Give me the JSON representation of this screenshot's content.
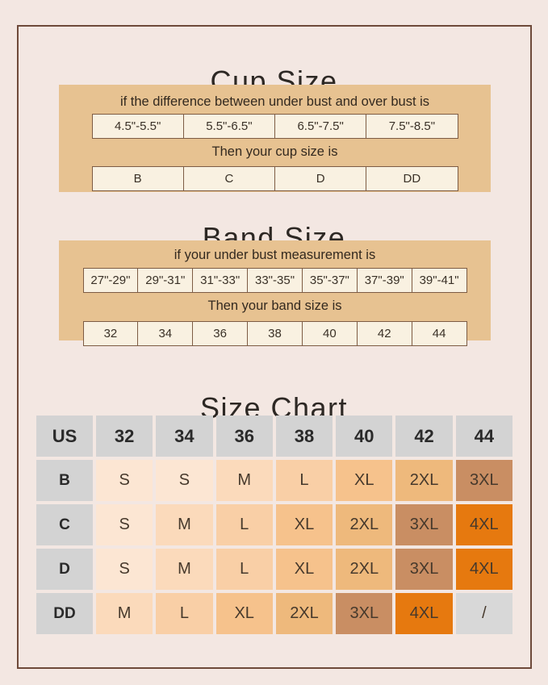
{
  "page": {
    "background": "#f3e7e2",
    "frame_color": "#6e4a3a",
    "tan_panel_color": "#e7c291",
    "cream_cell_color": "#f9f1e1"
  },
  "cup_size": {
    "title": "Cup Size",
    "instruction": "if the difference between under bust and over bust is",
    "ranges": [
      "4.5\"-5.5\"",
      "5.5\"-6.5\"",
      "6.5\"-7.5\"",
      "7.5\"-8.5\""
    ],
    "result_label": "Then your cup size is",
    "cups": [
      "B",
      "C",
      "D",
      "DD"
    ]
  },
  "band_size": {
    "title": "Band Size",
    "instruction": "if your under bust measurement is",
    "ranges": [
      "27\"-29\"",
      "29\"-31\"",
      "31\"-33\"",
      "33\"-35\"",
      "35\"-37\"",
      "37\"-39\"",
      "39\"-41\""
    ],
    "result_label": "Then your band size is",
    "bands": [
      "32",
      "34",
      "36",
      "38",
      "40",
      "42",
      "44"
    ]
  },
  "size_chart": {
    "title": "Size Chart",
    "corner_label": "US",
    "columns": [
      "32",
      "34",
      "36",
      "38",
      "40",
      "42",
      "44"
    ],
    "rows": [
      {
        "cup": "B",
        "sizes": [
          "S",
          "S",
          "M",
          "L",
          "XL",
          "2XL",
          "3XL"
        ]
      },
      {
        "cup": "C",
        "sizes": [
          "S",
          "M",
          "L",
          "XL",
          "2XL",
          "3XL",
          "4XL"
        ]
      },
      {
        "cup": "D",
        "sizes": [
          "S",
          "M",
          "L",
          "XL",
          "2XL",
          "3XL",
          "4XL"
        ]
      },
      {
        "cup": "DD",
        "sizes": [
          "M",
          "L",
          "XL",
          "2XL",
          "3XL",
          "4XL",
          "/"
        ]
      }
    ],
    "header_bg": "#d3d3d3",
    "size_colors": {
      "S": "#fce6d3",
      "M": "#fbdabb",
      "L": "#f9cfa6",
      "XL": "#f6c28c",
      "2XL": "#eeb97c",
      "3XL": "#c98e63",
      "4XL": "#e6790f",
      "/": "#d8d8d8"
    }
  }
}
